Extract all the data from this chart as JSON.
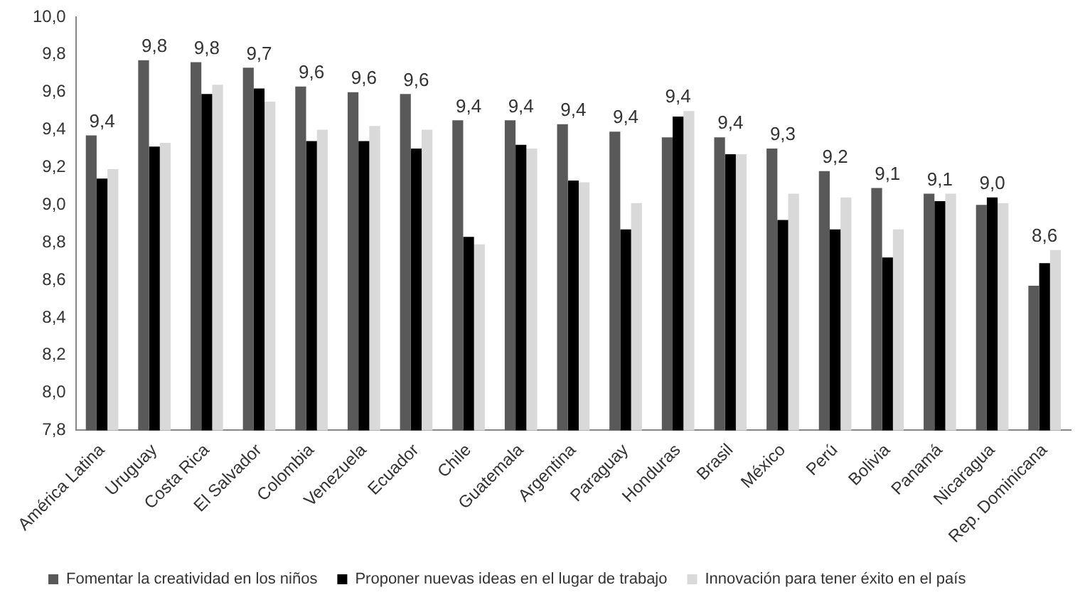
{
  "chart_data": {
    "type": "bar",
    "categories": [
      "América Latina",
      "Uruguay",
      "Costa Rica",
      "El Salvador",
      "Colombia",
      "Venezuela",
      "Ecuador",
      "Chile",
      "Guatemala",
      "Argentina",
      "Paraguay",
      "Honduras",
      "Brasil",
      "México",
      "Perú",
      "Bolivia",
      "Panamá",
      "Nicaragua",
      "Rep. Dominicana"
    ],
    "series": [
      {
        "name": "Fomentar la creatividad en los niños",
        "color": "#595959",
        "values": [
          9.37,
          9.77,
          9.76,
          9.73,
          9.63,
          9.6,
          9.59,
          9.45,
          9.45,
          9.43,
          9.39,
          9.36,
          9.36,
          9.3,
          9.18,
          9.09,
          9.06,
          9.0,
          8.57
        ],
        "value_labels": [
          "9,4",
          "9,8",
          "9,8",
          "9,7",
          "9,6",
          "9,6",
          "9,6",
          "9,4",
          "9,4",
          "9,4",
          "9,4",
          "9,4",
          "9,4",
          "9,3",
          "9,2",
          "9,1",
          "9,1",
          "9,0",
          "8,6"
        ]
      },
      {
        "name": "Proponer nuevas ideas en el lugar de trabajo",
        "color": "#000000",
        "values": [
          9.14,
          9.31,
          9.59,
          9.62,
          9.34,
          9.34,
          9.3,
          8.83,
          9.32,
          9.13,
          8.87,
          9.47,
          9.27,
          8.92,
          8.87,
          8.72,
          9.02,
          9.04,
          8.69
        ]
      },
      {
        "name": "Innovación para tener éxito en el país",
        "color": "#d9d9d9",
        "values": [
          9.19,
          9.33,
          9.64,
          9.55,
          9.4,
          9.42,
          9.4,
          8.79,
          9.3,
          9.12,
          9.01,
          9.5,
          9.27,
          9.06,
          9.04,
          8.87,
          9.06,
          9.01,
          8.76
        ]
      }
    ],
    "ylim": [
      7.8,
      10.0
    ],
    "yticks": [
      {
        "value": 7.8,
        "label": "7,8"
      },
      {
        "value": 8.0,
        "label": "8,0"
      },
      {
        "value": 8.2,
        "label": "8,2"
      },
      {
        "value": 8.4,
        "label": "8,4"
      },
      {
        "value": 8.6,
        "label": "8,6"
      },
      {
        "value": 8.8,
        "label": "8,8"
      },
      {
        "value": 9.0,
        "label": "9,0"
      },
      {
        "value": 9.2,
        "label": "9,2"
      },
      {
        "value": 9.4,
        "label": "9,4"
      },
      {
        "value": 9.6,
        "label": "9,6"
      },
      {
        "value": 9.8,
        "label": "9,8"
      },
      {
        "value": 10.0,
        "label": "10,0"
      }
    ],
    "grid": false,
    "legend": "bottom"
  }
}
